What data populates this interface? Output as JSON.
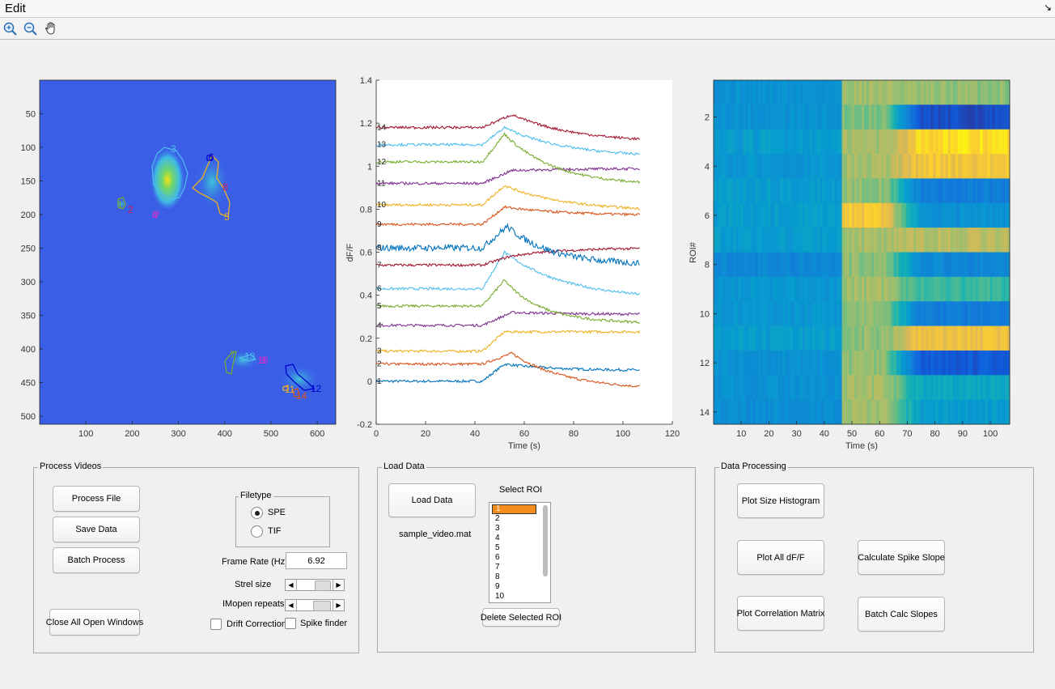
{
  "menubar": {
    "edit_label": "Edit",
    "corner_glyph": "↘"
  },
  "toolbar": {
    "tools": [
      {
        "name": "zoom-in-icon",
        "glyph": "+"
      },
      {
        "name": "zoom-out-icon",
        "glyph": "−"
      },
      {
        "name": "pan-hand-icon",
        "glyph": "✋"
      }
    ]
  },
  "image_plot": {
    "y_ticks": [
      "50",
      "100",
      "150",
      "200",
      "250",
      "300",
      "350",
      "400",
      "450",
      "500"
    ],
    "x_ticks": [
      "100",
      "200",
      "300",
      "400",
      "500",
      "600"
    ],
    "roi_labels": [
      "1",
      "2",
      "3",
      "4",
      "5",
      "6",
      "7",
      "8",
      "9",
      "10",
      "11",
      "12",
      "13",
      "14"
    ]
  },
  "traces_plot": {
    "x_ticks": [
      "0",
      "20",
      "40",
      "60",
      "80",
      "100",
      "120"
    ],
    "y_ticks": [
      "-0.2",
      "0",
      "0.2",
      "0.4",
      "0.6",
      "0.8",
      "1",
      "1.2",
      "1.4"
    ],
    "x_label": "Time (s)",
    "y_label": "dF/F",
    "trace_labels": [
      "1",
      "2",
      "3",
      "4",
      "5",
      "6",
      "7",
      "8",
      "9",
      "10",
      "11",
      "12",
      "13",
      "14"
    ]
  },
  "heatmap_plot": {
    "x_ticks": [
      "10",
      "20",
      "30",
      "40",
      "50",
      "60",
      "70",
      "80",
      "90",
      "100"
    ],
    "y_ticks": [
      "2",
      "4",
      "6",
      "8",
      "10",
      "12",
      "14"
    ],
    "x_label": "Time (s)",
    "y_label": "ROI#"
  },
  "chart_data": [
    {
      "type": "line",
      "xlabel": "Time (s)",
      "ylabel": "dF/F",
      "xlim": [
        0,
        120
      ],
      "ylim": [
        -0.2,
        1.4
      ],
      "grid": false,
      "series": [
        {
          "label": "1",
          "color": "#0072BD",
          "baseline": 0.0,
          "peak_t": 52,
          "amp": 0.08,
          "decay": 20,
          "late": 0.05
        },
        {
          "label": "2",
          "color": "#D95319",
          "baseline": 0.08,
          "peak_t": 55,
          "amp": 0.05,
          "decay": 22,
          "late": -0.04
        },
        {
          "label": "3",
          "color": "#EDB120",
          "baseline": 0.14,
          "peak_t": 52,
          "amp": 0.09,
          "decay": 15,
          "late": 0.23
        },
        {
          "label": "4",
          "color": "#7E2F8E",
          "baseline": 0.26,
          "peak_t": 55,
          "amp": 0.06,
          "decay": 30,
          "late": 0.31
        },
        {
          "label": "5",
          "color": "#77AC30",
          "baseline": 0.35,
          "peak_t": 52,
          "amp": 0.12,
          "decay": 15,
          "late": 0.27
        },
        {
          "label": "6",
          "color": "#4DBEEE",
          "baseline": 0.43,
          "peak_t": 52,
          "amp": 0.17,
          "decay": 25,
          "late": 0.38
        },
        {
          "label": "7",
          "color": "#A2142F",
          "baseline": 0.54,
          "peak_t": 54,
          "amp": 0.04,
          "decay": 20,
          "late": 0.62
        },
        {
          "label": "8",
          "color": "#0072BD",
          "baseline": 0.62,
          "peak_t": 53,
          "amp": 0.1,
          "decay": 18,
          "late": 0.54
        },
        {
          "label": "9",
          "color": "#D95319",
          "baseline": 0.73,
          "peak_t": 52,
          "amp": 0.08,
          "decay": 25,
          "late": 0.77
        },
        {
          "label": "10",
          "color": "#EDB120",
          "baseline": 0.82,
          "peak_t": 52,
          "amp": 0.09,
          "decay": 25,
          "late": 0.79
        },
        {
          "label": "11",
          "color": "#7E2F8E",
          "baseline": 0.92,
          "peak_t": 55,
          "amp": 0.06,
          "decay": 30,
          "late": 0.99
        },
        {
          "label": "12",
          "color": "#77AC30",
          "baseline": 1.02,
          "peak_t": 52,
          "amp": 0.13,
          "decay": 20,
          "late": 0.91
        },
        {
          "label": "13",
          "color": "#4DBEEE",
          "baseline": 1.1,
          "peak_t": 52,
          "amp": 0.08,
          "decay": 25,
          "late": 1.04
        },
        {
          "label": "14",
          "color": "#A2142F",
          "baseline": 1.18,
          "peak_t": 55,
          "amp": 0.06,
          "decay": 25,
          "late": 1.11
        }
      ]
    },
    {
      "type": "heatmap",
      "xlabel": "Time (s)",
      "ylabel": "ROI#",
      "xlim": [
        0,
        107
      ],
      "ylim": [
        1,
        14
      ],
      "rows": [
        {
          "roi": 1,
          "pre": 0.4,
          "post": 0.75,
          "late": 0.72
        },
        {
          "roi": 2,
          "pre": 0.4,
          "post": 0.7,
          "late": 0.1
        },
        {
          "roi": 3,
          "pre": 0.45,
          "post": 0.75,
          "late": 0.95
        },
        {
          "roi": 4,
          "pre": 0.42,
          "post": 0.75,
          "late": 0.9
        },
        {
          "roi": 5,
          "pre": 0.45,
          "post": 0.72,
          "late": 0.3
        },
        {
          "roi": 6,
          "pre": 0.45,
          "post": 0.9,
          "late": 0.4
        },
        {
          "roi": 7,
          "pre": 0.45,
          "post": 0.75,
          "late": 0.78
        },
        {
          "roi": 8,
          "pre": 0.35,
          "post": 0.72,
          "late": 0.35
        },
        {
          "roi": 9,
          "pre": 0.42,
          "post": 0.75,
          "late": 0.6
        },
        {
          "roi": 10,
          "pre": 0.42,
          "post": 0.72,
          "late": 0.3
        },
        {
          "roi": 11,
          "pre": 0.45,
          "post": 0.72,
          "late": 0.88
        },
        {
          "roi": 12,
          "pre": 0.4,
          "post": 0.72,
          "late": 0.15
        },
        {
          "roi": 13,
          "pre": 0.4,
          "post": 0.75,
          "late": 0.5
        },
        {
          "roi": 14,
          "pre": 0.38,
          "post": 0.75,
          "late": 0.45
        }
      ]
    }
  ],
  "process_videos": {
    "title": "Process Videos",
    "process_file": "Process File",
    "save_data": "Save Data",
    "batch_process": "Batch Process",
    "close_all": "Close All Open Windows",
    "filetype_title": "Filetype",
    "filetype_options": [
      "SPE",
      "TIF"
    ],
    "filetype_selected": "SPE",
    "frame_rate_label": "Frame Rate (Hz)",
    "frame_rate_value": "6.92",
    "strel_label": "Strel size",
    "imopen_label": "IMopen repeats",
    "drift_label": "Drift Correction",
    "spike_label": "Spike finder"
  },
  "load_data": {
    "title": "Load Data",
    "load_button": "Load Data",
    "filename": "sample_video.mat",
    "select_roi_label": "Select ROI",
    "roi_items": [
      "1",
      "2",
      "3",
      "4",
      "5",
      "6",
      "7",
      "8",
      "9",
      "10"
    ],
    "roi_selected": "1",
    "delete_button": "Delete Selected ROI"
  },
  "data_processing": {
    "title": "Data Processing",
    "size_histogram": "Plot Size Histogram",
    "plot_all": "Plot All dF/F",
    "spike_slope": "Calculate Spike Slope",
    "correlation": "Plot Correlation Matrix",
    "batch_slopes": "Batch Calc Slopes"
  }
}
